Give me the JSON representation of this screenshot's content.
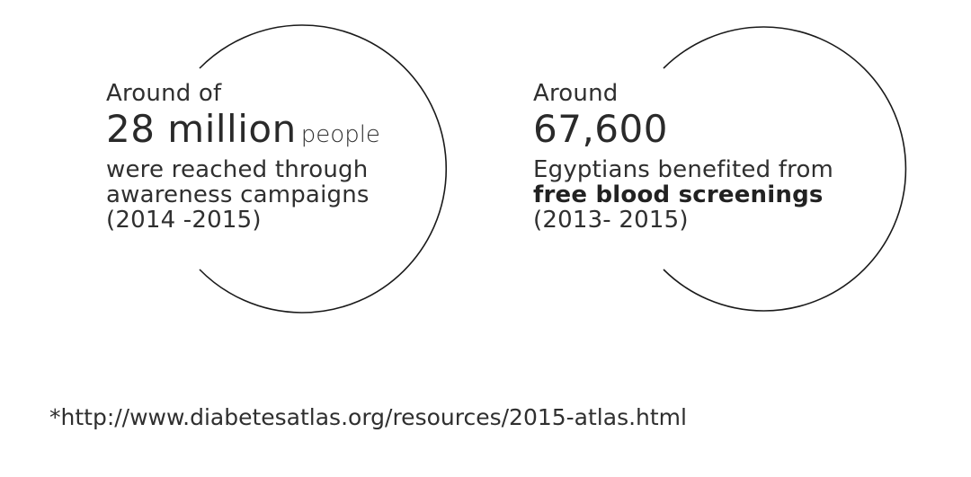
{
  "stats": [
    {
      "intro": "Around of",
      "figure": "28 million",
      "figure_suffix": "people",
      "line1": "were reached through",
      "line2": "awareness campaigns",
      "period": "(2014 -2015)"
    },
    {
      "intro": "Around",
      "figure": "67,600",
      "line1": "Egyptians benefited from",
      "line2_bold": "free blood screenings",
      "period": "(2013- 2015)"
    }
  ],
  "footnote": "*http://www.diabetesatlas.org/resources/2015-atlas.html"
}
